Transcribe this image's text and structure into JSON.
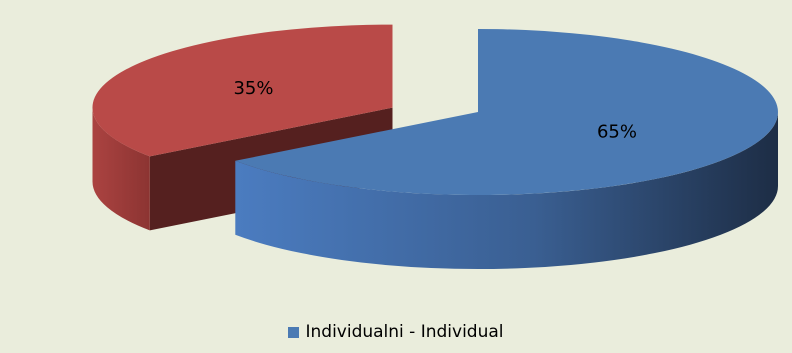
{
  "chart_data": {
    "type": "pie",
    "title": "",
    "slices": [
      {
        "name": "Individualni - Individual",
        "value": 65,
        "label": "65%",
        "color": "#4b7ab3"
      },
      {
        "name": "",
        "value": 35,
        "label": "35%",
        "color": "#b94a48"
      }
    ],
    "legend": {
      "placement": "bottom",
      "entries": [
        {
          "label": "Individualni - Individual",
          "color": "#4b7ab3"
        }
      ]
    },
    "style": {
      "three_d": true,
      "exploded": true
    },
    "background": "#eaeddc"
  }
}
